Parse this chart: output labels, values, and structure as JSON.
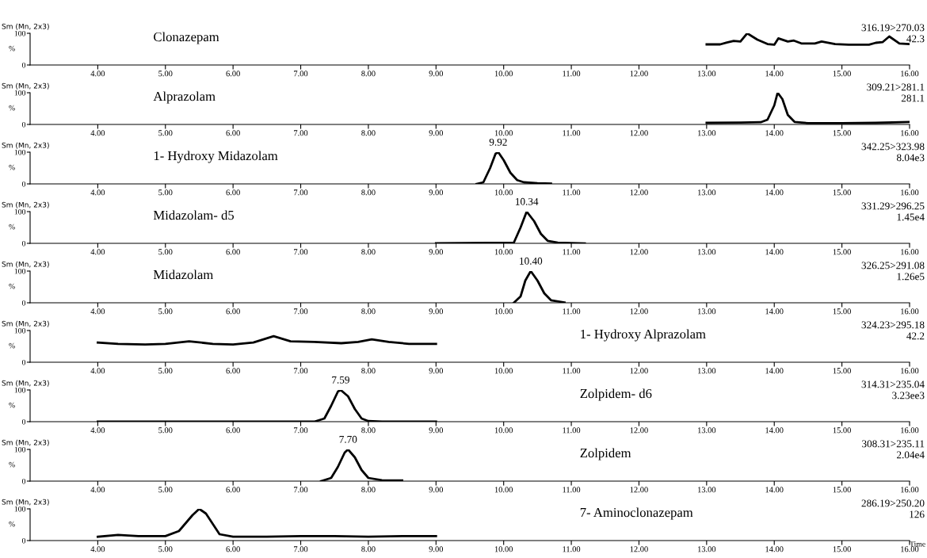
{
  "chart_data": [
    {
      "type": "line",
      "title": "Clonazepam",
      "xlabel": null,
      "ylabel": "%",
      "xlim": [
        3,
        16
      ],
      "xticks": [
        {
          "value": 4,
          "label": "4.00"
        },
        {
          "value": 5,
          "label": "5.00"
        },
        {
          "value": 6,
          "label": "6.00"
        },
        {
          "value": 7,
          "label": "7.00"
        },
        {
          "value": 8,
          "label": "8.00"
        },
        {
          "value": 9,
          "label": "9.00"
        },
        {
          "value": 10,
          "label": "10.00"
        },
        {
          "value": 11,
          "label": "11.00"
        },
        {
          "value": 12,
          "label": "12.00"
        },
        {
          "value": 13,
          "label": "13.00"
        },
        {
          "value": 14,
          "label": "14.00"
        },
        {
          "value": 15,
          "label": "15.00"
        },
        {
          "value": 16,
          "label": "16.00"
        }
      ],
      "ylim": [
        0,
        100
      ],
      "yticks": [
        0,
        100
      ],
      "color": "#000000",
      "x": [
        13.0,
        13.2,
        13.3,
        13.4,
        13.5,
        13.6,
        13.75,
        13.9,
        14.0,
        14.06,
        14.2,
        14.29,
        14.4,
        14.6,
        14.7,
        14.9,
        15.1,
        15.4,
        15.5,
        15.6,
        15.7,
        15.85,
        16.0
      ],
      "values": [
        65,
        65,
        71,
        76,
        74,
        100,
        80,
        66,
        64,
        84,
        74,
        77,
        68,
        68,
        74,
        66,
        64,
        64,
        70,
        72,
        90,
        68,
        66
      ],
      "annotations": [
        "Sm (Mn, 2x3)",
        "316.19>270.03",
        "42.3"
      ]
    },
    {
      "type": "line",
      "title": "Alprazolam",
      "ylabel": "%",
      "xlim": [
        3,
        16
      ],
      "xticks": [
        {
          "value": 4,
          "label": "4.00"
        },
        {
          "value": 5,
          "label": "5.00"
        },
        {
          "value": 6,
          "label": "6.00"
        },
        {
          "value": 7,
          "label": "7.00"
        },
        {
          "value": 8,
          "label": "8.00"
        },
        {
          "value": 9,
          "label": "9.00"
        },
        {
          "value": 10,
          "label": "10.00"
        },
        {
          "value": 11,
          "label": "11.00"
        },
        {
          "value": 12,
          "label": "12.00"
        },
        {
          "value": 13,
          "label": "13.00"
        },
        {
          "value": 14,
          "label": "14.00"
        },
        {
          "value": 15,
          "label": "15.00"
        },
        {
          "value": 16,
          "label": "16.00"
        }
      ],
      "ylim": [
        0,
        100
      ],
      "yticks": [
        0,
        100
      ],
      "color": "#000000",
      "x": [
        13.0,
        13.5,
        13.8,
        13.9,
        14.0,
        14.05,
        14.12,
        14.2,
        14.3,
        14.5,
        15.0,
        15.5,
        16.0
      ],
      "values": [
        5,
        6,
        7,
        15,
        60,
        100,
        80,
        30,
        8,
        4,
        4,
        5,
        8
      ],
      "annotations": [
        "Sm (Mn, 2x3)",
        "309.21>281.1",
        "281.1"
      ]
    },
    {
      "type": "line",
      "title": "1- Hydroxy Midazolam",
      "ylabel": "%",
      "xlim": [
        3,
        16
      ],
      "xticks": [
        {
          "value": 4,
          "label": "4.00"
        },
        {
          "value": 5,
          "label": "5.00"
        },
        {
          "value": 6,
          "label": "6.00"
        },
        {
          "value": 7,
          "label": "7.00"
        },
        {
          "value": 8,
          "label": "8.00"
        },
        {
          "value": 9,
          "label": "9.00"
        },
        {
          "value": 10,
          "label": "10.00"
        },
        {
          "value": 11,
          "label": "11.00"
        },
        {
          "value": 12,
          "label": "12.00"
        },
        {
          "value": 13,
          "label": "13.00"
        },
        {
          "value": 14,
          "label": "14.00"
        },
        {
          "value": 15,
          "label": "15.00"
        },
        {
          "value": 16,
          "label": "16.00"
        }
      ],
      "ylim": [
        0,
        100
      ],
      "yticks": [
        0,
        100
      ],
      "color": "#000000",
      "x": [
        9.6,
        9.7,
        9.8,
        9.88,
        9.92,
        10.0,
        10.1,
        10.2,
        10.3,
        10.5,
        10.7
      ],
      "values": [
        0,
        5,
        50,
        95,
        100,
        75,
        35,
        12,
        5,
        2,
        1
      ],
      "annotations": [
        "Sm (Mn, 2x3)",
        "342.25>323.98",
        "8.04e3",
        {
          "text": "9.92",
          "x": 9.92,
          "y": 100
        }
      ]
    },
    {
      "type": "line",
      "title": "Midazolam- d5",
      "ylabel": "%",
      "xlim": [
        3,
        16
      ],
      "xticks": [
        {
          "value": 4,
          "label": "4.00"
        },
        {
          "value": 5,
          "label": "5.00"
        },
        {
          "value": 6,
          "label": "6.00"
        },
        {
          "value": 7,
          "label": "7.00"
        },
        {
          "value": 8,
          "label": "8.00"
        },
        {
          "value": 9,
          "label": "9.00"
        },
        {
          "value": 10,
          "label": "10.00"
        },
        {
          "value": 11,
          "label": "11.00"
        },
        {
          "value": 12,
          "label": "12.00"
        },
        {
          "value": 13,
          "label": "13.00"
        },
        {
          "value": 14,
          "label": "14.00"
        },
        {
          "value": 15,
          "label": "15.00"
        },
        {
          "value": 16,
          "label": "16.00"
        }
      ],
      "ylim": [
        0,
        100
      ],
      "yticks": [
        0,
        100
      ],
      "color": "#000000",
      "x": [
        9.0,
        10.15,
        10.25,
        10.34,
        10.45,
        10.55,
        10.65,
        10.8,
        11.0,
        11.2
      ],
      "values": [
        0,
        2,
        50,
        100,
        70,
        30,
        8,
        2,
        1,
        0
      ],
      "annotations": [
        "Sm (Mn, 2x3)",
        "331.29>296.25",
        "1.45e4",
        {
          "text": "10.34",
          "x": 10.34,
          "y": 100
        }
      ]
    },
    {
      "type": "line",
      "title": "Midazolam",
      "ylabel": "%",
      "xlim": [
        3,
        16
      ],
      "xticks": [
        {
          "value": 4,
          "label": "4.00"
        },
        {
          "value": 5,
          "label": "5.00"
        },
        {
          "value": 6,
          "label": "6.00"
        },
        {
          "value": 7,
          "label": "7.00"
        },
        {
          "value": 8,
          "label": "8.00"
        },
        {
          "value": 9,
          "label": "9.00"
        },
        {
          "value": 10,
          "label": "10.00"
        },
        {
          "value": 11,
          "label": "11.00"
        },
        {
          "value": 12,
          "label": "12.00"
        },
        {
          "value": 13,
          "label": "13.00"
        },
        {
          "value": 14,
          "label": "14.00"
        },
        {
          "value": 15,
          "label": "15.00"
        },
        {
          "value": 16,
          "label": "16.00"
        }
      ],
      "ylim": [
        0,
        100
      ],
      "yticks": [
        0,
        100
      ],
      "color": "#000000",
      "x": [
        10.15,
        10.25,
        10.32,
        10.4,
        10.5,
        10.6,
        10.7,
        10.9
      ],
      "values": [
        0,
        20,
        70,
        100,
        70,
        30,
        8,
        1
      ],
      "annotations": [
        "Sm (Mn, 2x3)",
        "326.25>291.08",
        "1.26e5",
        {
          "text": "10.40",
          "x": 10.4,
          "y": 100
        }
      ]
    },
    {
      "type": "line",
      "title": "1- Hydroxy Alprazolam",
      "ylabel": "%",
      "xlim": [
        3,
        16
      ],
      "xticks": [
        {
          "value": 4,
          "label": "4.00"
        },
        {
          "value": 5,
          "label": "5.00"
        },
        {
          "value": 6,
          "label": "6.00"
        },
        {
          "value": 7,
          "label": "7.00"
        },
        {
          "value": 8,
          "label": "8.00"
        },
        {
          "value": 9,
          "label": "9.00"
        },
        {
          "value": 10,
          "label": "10.00"
        },
        {
          "value": 11,
          "label": "11.00"
        },
        {
          "value": 12,
          "label": "12.00"
        },
        {
          "value": 13,
          "label": "13.00"
        },
        {
          "value": 14,
          "label": "14.00"
        },
        {
          "value": 15,
          "label": "15.00"
        },
        {
          "value": 16,
          "label": "16.00"
        }
      ],
      "ylim": [
        0,
        100
      ],
      "yticks": [
        0,
        100
      ],
      "color": "#000000",
      "x": [
        4.0,
        4.3,
        4.7,
        5.0,
        5.35,
        5.7,
        6.0,
        6.3,
        6.6,
        6.85,
        7.2,
        7.6,
        7.85,
        8.05,
        8.3,
        8.6,
        9.0
      ],
      "values": [
        62,
        58,
        56,
        58,
        66,
        58,
        56,
        62,
        82,
        66,
        64,
        60,
        64,
        72,
        64,
        58,
        58
      ],
      "annotations": [
        "Sm (Mn, 2x3)",
        "324.23>295.18",
        "42.2"
      ]
    },
    {
      "type": "line",
      "title": "Zolpidem- d6",
      "ylabel": "%",
      "xlim": [
        3,
        16
      ],
      "xticks": [
        {
          "value": 4,
          "label": "4.00"
        },
        {
          "value": 5,
          "label": "5.00"
        },
        {
          "value": 6,
          "label": "6.00"
        },
        {
          "value": 7,
          "label": "7.00"
        },
        {
          "value": 8,
          "label": "8.00"
        },
        {
          "value": 9,
          "label": "9.00"
        },
        {
          "value": 10,
          "label": "10.00"
        },
        {
          "value": 11,
          "label": "11.00"
        },
        {
          "value": 12,
          "label": "12.00"
        },
        {
          "value": 13,
          "label": "13.00"
        },
        {
          "value": 14,
          "label": "14.00"
        },
        {
          "value": 15,
          "label": "15.00"
        },
        {
          "value": 16,
          "label": "16.00"
        }
      ],
      "ylim": [
        0,
        100
      ],
      "yticks": [
        0,
        100
      ],
      "color": "#000000",
      "x": [
        4.0,
        7.2,
        7.35,
        7.45,
        7.55,
        7.59,
        7.7,
        7.8,
        7.9,
        8.0,
        8.2,
        9.0
      ],
      "values": [
        0,
        0,
        10,
        50,
        95,
        100,
        80,
        40,
        10,
        2,
        0,
        0
      ],
      "annotations": [
        "Sm (Mn, 2x3)",
        "314.31>235.04",
        "3.23ee3",
        {
          "text": "7.59",
          "x": 7.59,
          "y": 100
        }
      ]
    },
    {
      "type": "line",
      "title": "Zolpidem",
      "ylabel": "%",
      "xlim": [
        3,
        16
      ],
      "xticks": [
        {
          "value": 4,
          "label": "4.00"
        },
        {
          "value": 5,
          "label": "5.00"
        },
        {
          "value": 6,
          "label": "6.00"
        },
        {
          "value": 7,
          "label": "7.00"
        },
        {
          "value": 8,
          "label": "8.00"
        },
        {
          "value": 9,
          "label": "9.00"
        },
        {
          "value": 10,
          "label": "10.00"
        },
        {
          "value": 11,
          "label": "11.00"
        },
        {
          "value": 12,
          "label": "12.00"
        },
        {
          "value": 13,
          "label": "13.00"
        },
        {
          "value": 14,
          "label": "14.00"
        },
        {
          "value": 15,
          "label": "15.00"
        },
        {
          "value": 16,
          "label": "16.00"
        }
      ],
      "ylim": [
        0,
        100
      ],
      "yticks": [
        0,
        100
      ],
      "color": "#000000",
      "x": [
        7.3,
        7.45,
        7.55,
        7.65,
        7.7,
        7.8,
        7.9,
        8.0,
        8.2,
        8.5
      ],
      "values": [
        0,
        10,
        45,
        90,
        100,
        75,
        35,
        10,
        3,
        2
      ],
      "annotations": [
        "Sm (Mn, 2x3)",
        "308.31>235.11",
        "2.04e4",
        {
          "text": "7.70",
          "x": 7.7,
          "y": 100
        }
      ]
    },
    {
      "type": "line",
      "title": "7- Aminoclonazepam",
      "xlabel": "Time",
      "ylabel": "%",
      "xlim": [
        3,
        16
      ],
      "xticks": [
        {
          "value": 4,
          "label": "4.00"
        },
        {
          "value": 5,
          "label": "5.00"
        },
        {
          "value": 6,
          "label": "6.00"
        },
        {
          "value": 7,
          "label": "7.00"
        },
        {
          "value": 8,
          "label": "8.00"
        },
        {
          "value": 9,
          "label": "9.00"
        },
        {
          "value": 10,
          "label": "10.00"
        },
        {
          "value": 11,
          "label": "11.00"
        },
        {
          "value": 12,
          "label": "12.00"
        },
        {
          "value": 13,
          "label": "13.00"
        },
        {
          "value": 14,
          "label": "14.00"
        },
        {
          "value": 15,
          "label": "15.00"
        },
        {
          "value": 16,
          "label": "16.00"
        }
      ],
      "ylim": [
        0,
        100
      ],
      "yticks": [
        0,
        100
      ],
      "color": "#000000",
      "x": [
        4.0,
        4.3,
        4.6,
        5.0,
        5.2,
        5.4,
        5.5,
        5.6,
        5.8,
        6.0,
        6.5,
        7.0,
        7.5,
        8.0,
        8.5,
        9.0
      ],
      "values": [
        12,
        18,
        14,
        14,
        30,
        80,
        100,
        85,
        20,
        12,
        12,
        14,
        14,
        12,
        14,
        14
      ],
      "annotations": [
        "Sm (Mn, 2x3)",
        "286.19>250.20",
        "126"
      ]
    }
  ]
}
